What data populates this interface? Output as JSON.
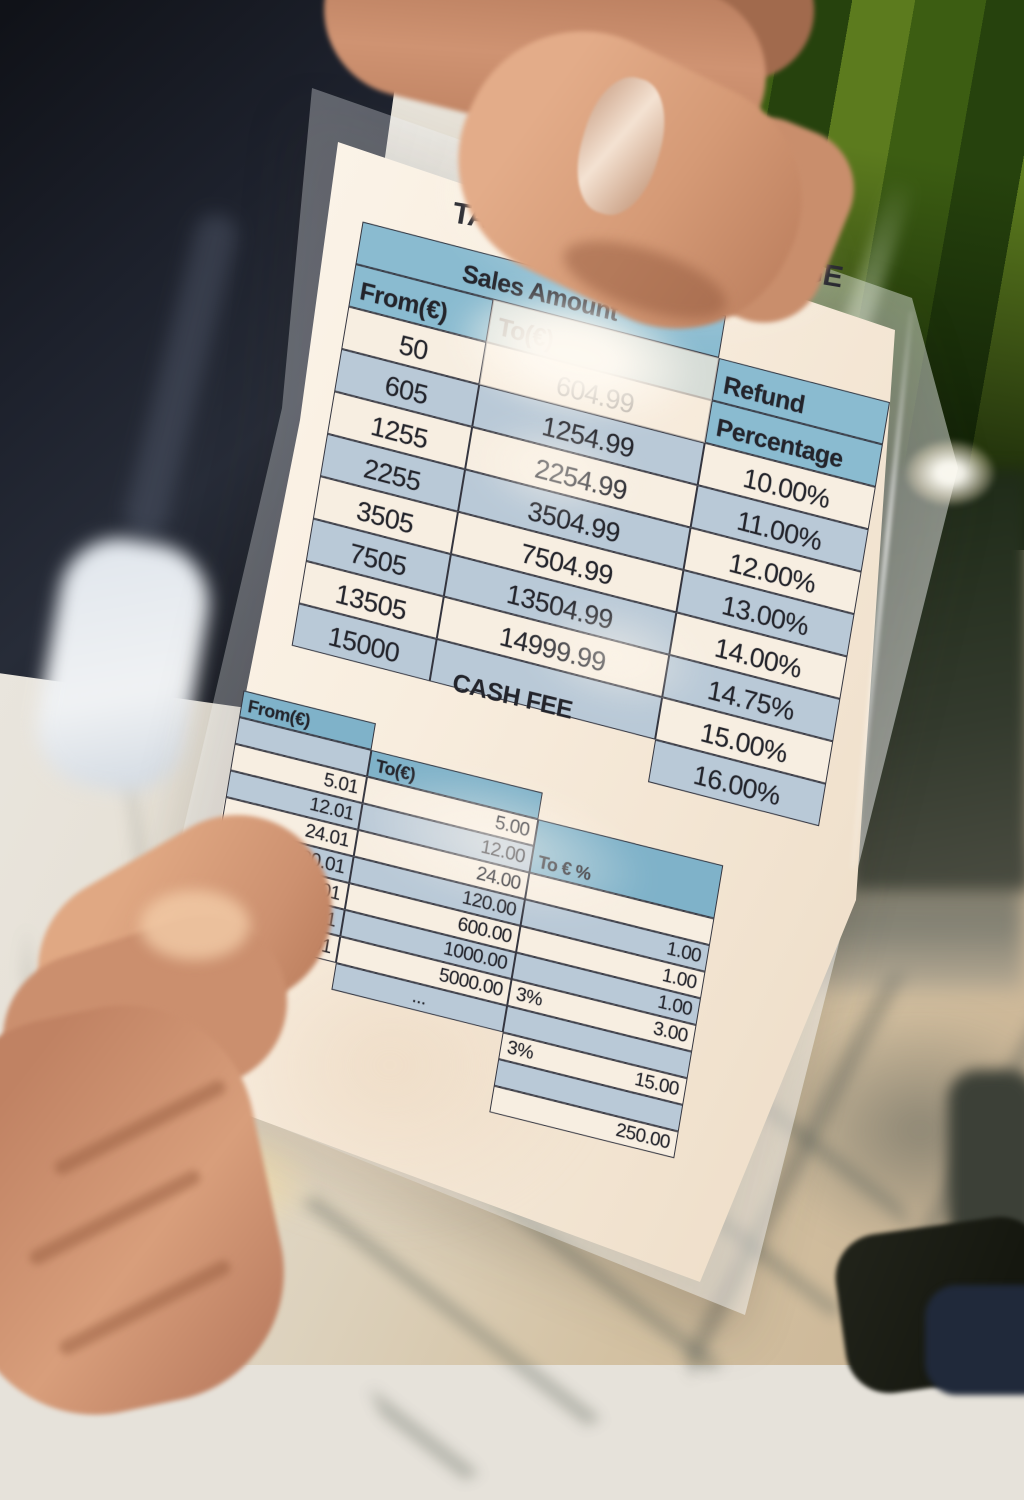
{
  "refund_table": {
    "title": "TAX REFUND PERCENTAGE",
    "span_header": "Sales Amount",
    "from_header": "From(€)",
    "to_header": "To(€)",
    "refund_header_line1": "Refund",
    "refund_header_line2": "Percentage",
    "rows": [
      {
        "from": "50",
        "to": "604.99",
        "pct": "10.00%"
      },
      {
        "from": "605",
        "to": "1254.99",
        "pct": "11.00%"
      },
      {
        "from": "1255",
        "to": "2254.99",
        "pct": "12.00%"
      },
      {
        "from": "2255",
        "to": "3504.99",
        "pct": "13.00%"
      },
      {
        "from": "3505",
        "to": "7504.99",
        "pct": "14.00%"
      },
      {
        "from": "7505",
        "to": "13504.99",
        "pct": "14.75%"
      },
      {
        "from": "13505",
        "to": "14999.99",
        "pct": "15.00%"
      },
      {
        "from": "15000",
        "to": "",
        "pct": "16.00%"
      }
    ]
  },
  "cash_fee_table": {
    "title": "CASH FEE",
    "from_header": "From(€)",
    "to_header": "To(€)",
    "fee_header": "To €  %",
    "from_values": [
      "",
      "5.01",
      "12.01",
      "24.01",
      "120.01",
      "600.01",
      "1000.01",
      "5000.01"
    ],
    "to_values": [
      "5.00",
      "12.00",
      "24.00",
      "120.00",
      "600.00",
      "1000.00",
      "5000.00",
      "..."
    ],
    "fee_cells": [
      {
        "pct": "",
        "amount": ""
      },
      {
        "pct": "",
        "amount": "1.00"
      },
      {
        "pct": "",
        "amount": "1.00"
      },
      {
        "pct": "",
        "amount": "1.00"
      },
      {
        "pct": "3%",
        "amount": "3.00"
      },
      {
        "pct": "",
        "amount": ""
      },
      {
        "pct": "3%",
        "amount": "15.00"
      },
      {
        "pct": "",
        "amount": ""
      },
      {
        "pct": "",
        "amount": "250.00"
      }
    ]
  },
  "colors": {
    "header_blue": "#8abbd0",
    "dark_header_blue": "#609bb6",
    "row_blue": "#b9c9d7",
    "row_cream": "#f7eee1",
    "border": "#34353f",
    "tile_green": "#3c5d12",
    "marble_warm": "#d3c1a2"
  }
}
